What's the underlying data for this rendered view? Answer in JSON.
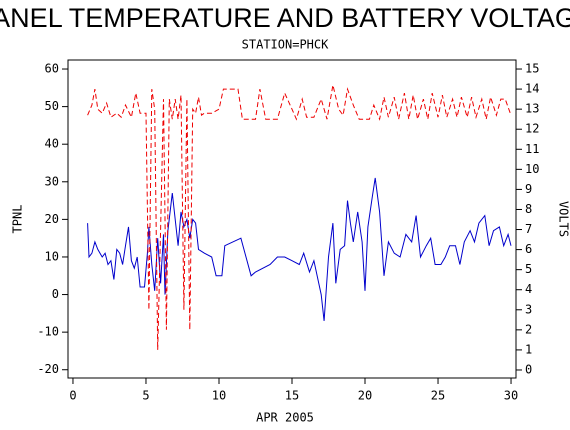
{
  "chart_data": {
    "type": "line",
    "title": "PANEL TEMPERATURE AND BATTERY VOLTAGE",
    "subtitle": "STATION=PHCK",
    "x_label": "APR 2005",
    "y_label": "TPNL",
    "y2_label": "VOLTS",
    "xlim": [
      -0.34,
      30.34
    ],
    "xticks": [
      0,
      5,
      10,
      15,
      20,
      25,
      30
    ],
    "ylim": [
      -22.2,
      62.4
    ],
    "yticks": [
      -20,
      -10,
      0,
      10,
      20,
      30,
      40,
      50,
      60
    ],
    "y2lim": [
      -0.4,
      15.45
    ],
    "y2ticks": [
      0,
      1,
      2,
      3,
      4,
      5,
      6,
      7,
      8,
      9,
      10,
      11,
      12,
      13,
      14,
      15
    ],
    "series": [
      {
        "color": "#0000cc",
        "x": [
          1,
          1.1,
          1.3,
          1.5,
          1.7,
          2,
          2.2,
          2.4,
          2.6,
          2.8,
          3,
          3.2,
          3.4,
          3.6,
          3.8,
          4,
          4.2,
          4.4,
          4.6,
          4.9,
          5.1,
          5.2,
          5.4,
          5.6,
          5.8,
          6,
          6.2,
          6.3,
          6.5,
          6.8,
          7,
          7.2,
          7.4,
          7.6,
          7.8,
          8,
          8.2,
          8.4,
          8.6,
          9,
          9.5,
          9.8,
          10.2,
          10.4,
          11.5,
          12.2,
          12.5,
          13.5,
          14,
          14.5,
          15,
          15.5,
          15.8,
          16.2,
          16.5,
          17,
          17.2,
          17.5,
          17.8,
          18,
          18.3,
          18.6,
          18.8,
          19,
          19.2,
          19.5,
          19.8,
          20,
          20.2,
          20.5,
          20.7,
          21,
          21.3,
          21.6,
          22,
          22.4,
          22.8,
          23.2,
          23.5,
          23.8,
          24.2,
          24.5,
          24.8,
          25.2,
          25.5,
          25.8,
          26.2,
          26.5,
          26.8,
          27.2,
          27.5,
          27.8,
          28.2,
          28.5,
          28.8,
          29.2,
          29.5,
          29.8,
          30
        ],
        "values": [
          19,
          10,
          11,
          14,
          12,
          10,
          11,
          8,
          9,
          4,
          12,
          11,
          8,
          13,
          18,
          9,
          7,
          10,
          2,
          2,
          11,
          18,
          8,
          1,
          15,
          3,
          16,
          0,
          17,
          27,
          20,
          13,
          22,
          18,
          20,
          15,
          20,
          19,
          12,
          11,
          10,
          5,
          5,
          13,
          15,
          5,
          6,
          8,
          10,
          10,
          9,
          8,
          11,
          6,
          9,
          0,
          -7,
          10,
          19,
          3,
          12,
          13,
          25,
          19,
          14,
          22,
          14,
          1,
          18,
          26,
          31,
          22,
          5,
          14,
          11,
          10,
          16,
          14,
          21,
          10,
          13,
          15,
          8,
          8,
          10,
          13,
          13,
          8,
          14,
          17,
          14,
          19,
          21,
          13,
          17,
          18,
          13,
          16,
          13
        ]
      },
      {
        "color": "#ee0000",
        "axis": "y2",
        "dash": true,
        "x": [
          1,
          1.3,
          1.5,
          1.7,
          2,
          2.3,
          2.6,
          3,
          3.3,
          3.6,
          4,
          4.3,
          4.6,
          5,
          5.2,
          5.4,
          5.6,
          5.8,
          6,
          6.2,
          6.4,
          6.6,
          6.8,
          7,
          7.2,
          7.4,
          7.6,
          7.8,
          8,
          8.2,
          8.4,
          8.6,
          8.8,
          9,
          9.5,
          10,
          10.3,
          11.3,
          11.6,
          12.5,
          12.8,
          13.2,
          14,
          14.5,
          15,
          15.3,
          15.7,
          16,
          16.5,
          17,
          17.4,
          17.8,
          18.2,
          18.5,
          18.8,
          19.2,
          19.6,
          20.3,
          20.6,
          21,
          21.3,
          21.6,
          22,
          22.3,
          22.7,
          23,
          23.3,
          23.6,
          24,
          24.3,
          24.6,
          25,
          25.3,
          25.6,
          26,
          26.3,
          26.6,
          27,
          27.3,
          27.6,
          28,
          28.3,
          28.6,
          29,
          29.3,
          29.6,
          30
        ],
        "values": [
          12.7,
          13.2,
          14,
          13,
          12.8,
          13.3,
          12.6,
          12.8,
          12.6,
          13.2,
          12.6,
          13.8,
          12.8,
          12.8,
          3,
          14,
          13,
          1,
          7,
          13.5,
          2,
          13.5,
          12.5,
          13.5,
          12.5,
          13.7,
          3,
          13.5,
          2,
          13,
          12.8,
          13.6,
          12.7,
          12.8,
          12.8,
          13,
          14,
          14,
          12.5,
          12.5,
          14,
          12.5,
          12.5,
          13.8,
          13,
          12.5,
          13.5,
          12.6,
          12.6,
          13.5,
          12.5,
          14.2,
          13,
          12.7,
          14,
          13.2,
          12.5,
          12.5,
          13.2,
          12.5,
          13.6,
          12.6,
          13.6,
          12.5,
          13.8,
          12.5,
          13.7,
          12.5,
          13.5,
          12.5,
          13.8,
          12.6,
          13.7,
          12.6,
          13.5,
          12.6,
          13.6,
          12.6,
          13.6,
          12.6,
          13.5,
          12.5,
          13.6,
          12.7,
          13.5,
          13.5,
          12.7
        ]
      }
    ]
  }
}
